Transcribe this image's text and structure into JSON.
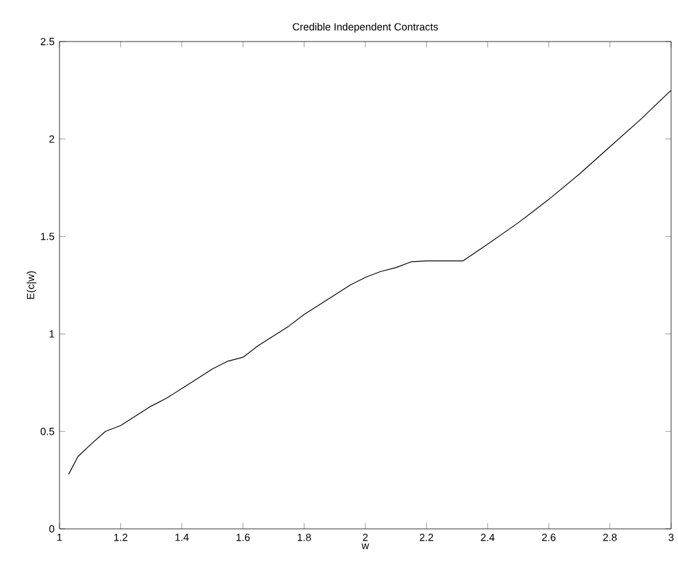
{
  "chart_data": {
    "type": "line",
    "title": "Credible Independent Contracts",
    "xlabel": "w",
    "ylabel": "E(c|w)",
    "x": [
      1.03,
      1.06,
      1.1,
      1.15,
      1.2,
      1.25,
      1.3,
      1.35,
      1.4,
      1.45,
      1.5,
      1.55,
      1.6,
      1.65,
      1.7,
      1.75,
      1.8,
      1.85,
      1.9,
      1.95,
      2.0,
      2.05,
      2.1,
      2.15,
      2.2,
      2.32,
      2.4,
      2.5,
      2.6,
      2.7,
      2.8,
      2.9,
      3.0
    ],
    "series": [
      {
        "color": "#000000",
        "values": [
          0.28,
          0.37,
          0.43,
          0.5,
          0.53,
          0.58,
          0.63,
          0.67,
          0.72,
          0.77,
          0.82,
          0.86,
          0.88,
          0.94,
          0.99,
          1.04,
          1.1,
          1.15,
          1.2,
          1.25,
          1.29,
          1.32,
          1.34,
          1.37,
          1.375,
          1.375,
          1.46,
          1.57,
          1.69,
          1.82,
          1.96,
          2.1,
          2.25
        ]
      }
    ],
    "xlim": [
      1,
      3
    ],
    "ylim": [
      0,
      2.5
    ],
    "xticks": [
      1,
      1.2,
      1.4,
      1.6,
      1.8,
      2,
      2.2,
      2.4,
      2.6,
      2.8,
      3
    ],
    "yticks": [
      0,
      0.5,
      1,
      1.5,
      2,
      2.5
    ],
    "grid": false,
    "marker": "none",
    "line_style": "solid"
  }
}
